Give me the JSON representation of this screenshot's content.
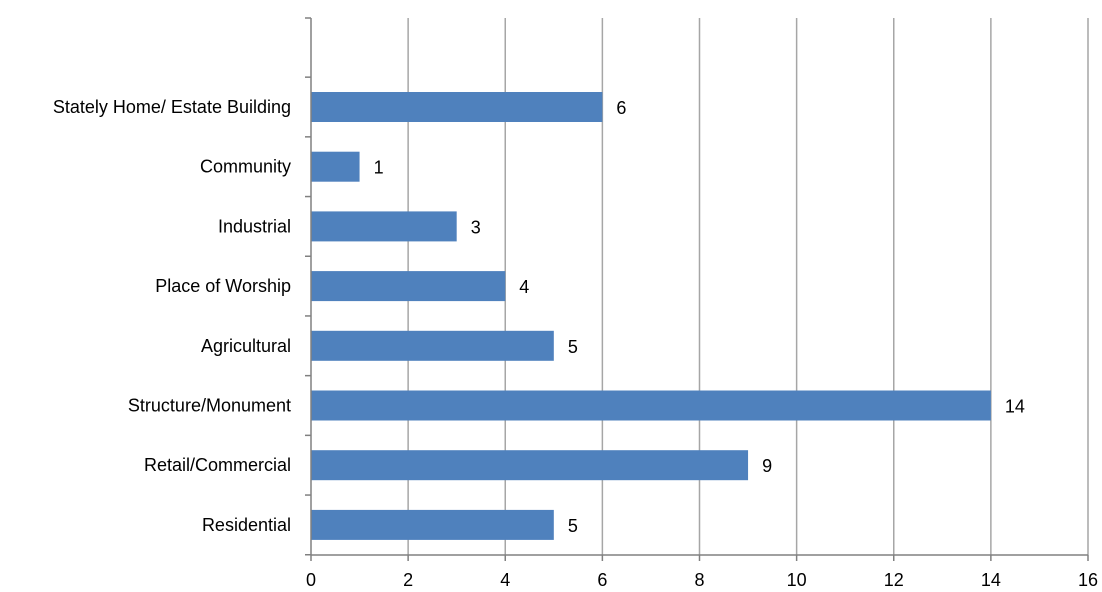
{
  "chart_data": {
    "type": "bar",
    "orientation": "horizontal",
    "title": "",
    "xlabel": "",
    "ylabel": "",
    "categories": [
      "Stately Home/ Estate Building",
      "Community",
      "Industrial",
      "Place of Worship",
      "Agricultural",
      "Structure/Monument",
      "Retail/Commercial",
      "Residential"
    ],
    "values": [
      6,
      1,
      3,
      4,
      5,
      14,
      9,
      5
    ],
    "xlim": [
      0,
      16
    ],
    "xticks": [
      0,
      2,
      4,
      6,
      8,
      10,
      12,
      14,
      16
    ],
    "grid": "vertical major gridlines",
    "legend": "none",
    "data_labels": true,
    "bar_color": "#4F81BD",
    "grid_color": "#A6A6A6",
    "axis_color": "#808080"
  }
}
